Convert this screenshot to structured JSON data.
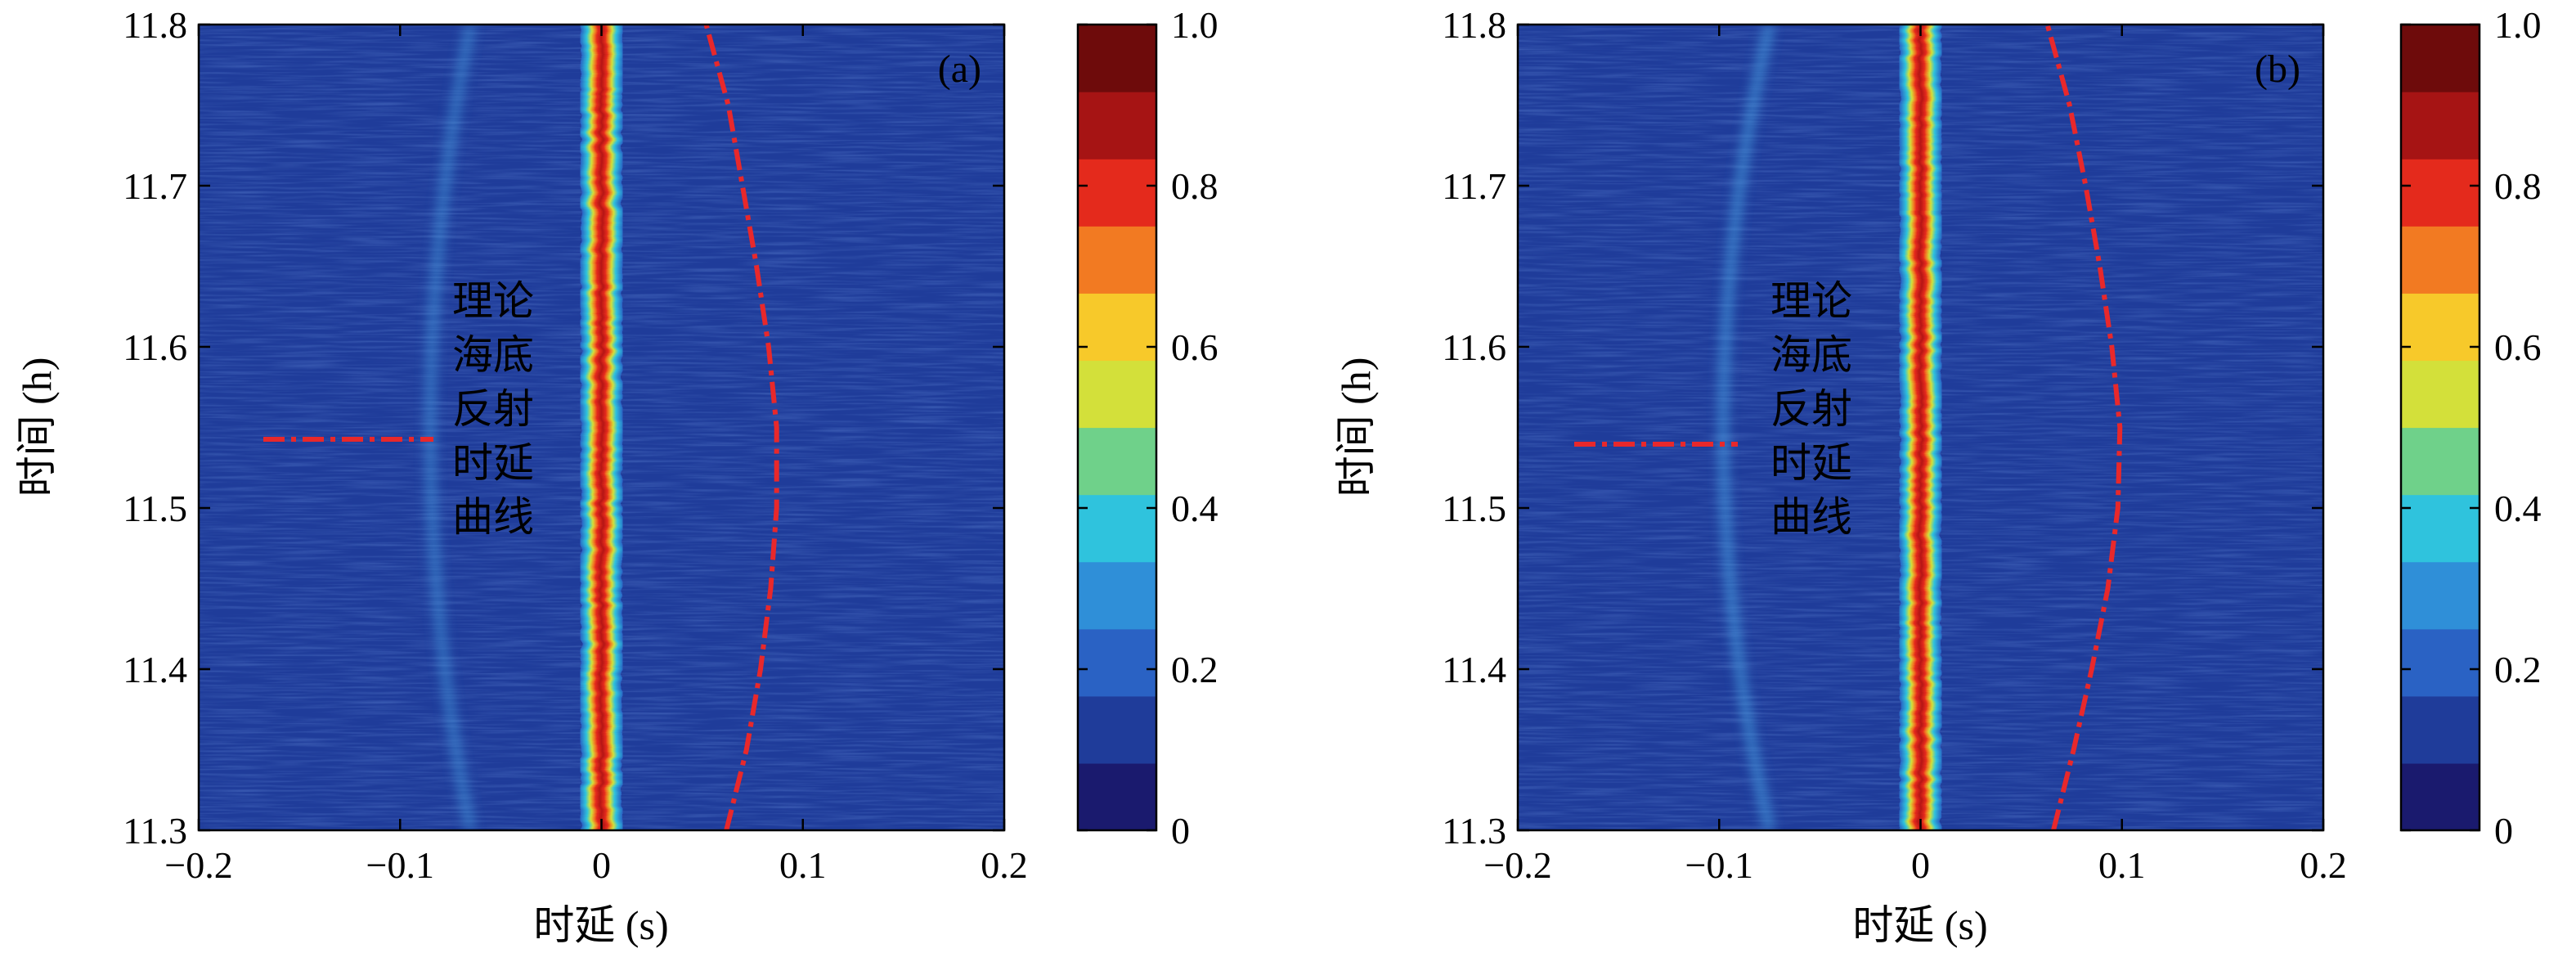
{
  "colors": {
    "background": "#1f3c9a",
    "annotation_line": "#e8282b",
    "annotation_text": "#ffffff",
    "colorbar": [
      "#1a1a6e",
      "#1f3c9a",
      "#2a62c4",
      "#2f8fd8",
      "#2fc3dd",
      "#6fd18a",
      "#d3e03a",
      "#f7c92a",
      "#f27a22",
      "#e42a1c",
      "#a61414",
      "#6e0b0b"
    ]
  },
  "chart_data": [
    {
      "type": "heatmap",
      "panel_label": "(a)",
      "xlabel": "时延 (s)",
      "ylabel": "时间 (h)",
      "xlim": [
        -0.2,
        0.2
      ],
      "ylim": [
        11.3,
        11.8
      ],
      "xticks": [
        -0.2,
        -0.1,
        0,
        0.1,
        0.2
      ],
      "xtick_labels": [
        "−0.2",
        "−0.1",
        "0",
        "0.1",
        "0.2"
      ],
      "yticks": [
        11.3,
        11.4,
        11.5,
        11.6,
        11.7,
        11.8
      ],
      "ytick_labels": [
        "11.3",
        "11.4",
        "11.5",
        "11.6",
        "11.7",
        "11.8"
      ],
      "colorbar": {
        "range": [
          0,
          1
        ],
        "ticks": [
          0,
          0.2,
          0.4,
          0.6,
          0.8,
          1.0
        ],
        "tick_labels": [
          "0",
          "0.2",
          "0.4",
          "0.6",
          "0.8",
          "1.0"
        ]
      },
      "direct_path": {
        "delay": 0.0,
        "intensity": 1.0
      },
      "faint_arc": {
        "delay_at_center": -0.085,
        "delay_at_edges": -0.065,
        "intensity": 0.3
      },
      "theoretical_curve": {
        "label_lines": [
          "理论",
          "海底",
          "反射",
          "时延",
          "曲线"
        ],
        "style": "dash-dot",
        "points": [
          [
            0.062,
            11.3
          ],
          [
            0.072,
            11.35
          ],
          [
            0.079,
            11.4
          ],
          [
            0.084,
            11.45
          ],
          [
            0.087,
            11.5
          ],
          [
            0.087,
            11.55
          ],
          [
            0.083,
            11.6
          ],
          [
            0.077,
            11.65
          ],
          [
            0.07,
            11.7
          ],
          [
            0.063,
            11.75
          ],
          [
            0.052,
            11.8
          ]
        ]
      }
    },
    {
      "type": "heatmap",
      "panel_label": "(b)",
      "xlabel": "时延 (s)",
      "ylabel": "时间 (h)",
      "xlim": [
        -0.2,
        0.2
      ],
      "ylim": [
        11.3,
        11.8
      ],
      "xticks": [
        -0.2,
        -0.1,
        0,
        0.1,
        0.2
      ],
      "xtick_labels": [
        "−0.2",
        "−0.1",
        "0",
        "0.1",
        "0.2"
      ],
      "yticks": [
        11.3,
        11.4,
        11.5,
        11.6,
        11.7,
        11.8
      ],
      "ytick_labels": [
        "11.3",
        "11.4",
        "11.5",
        "11.6",
        "11.7",
        "11.8"
      ],
      "colorbar": {
        "range": [
          0,
          1
        ],
        "ticks": [
          0,
          0.2,
          0.4,
          0.6,
          0.8,
          1.0
        ],
        "tick_labels": [
          "0",
          "0.2",
          "0.4",
          "0.6",
          "0.8",
          "1.0"
        ]
      },
      "direct_path": {
        "delay": 0.0,
        "intensity": 1.0
      },
      "faint_arc": {
        "delay_at_center": -0.098,
        "delay_at_edges": -0.075,
        "intensity": 0.4
      },
      "theoretical_curve": {
        "label_lines": [
          "理论",
          "海底",
          "反射",
          "时延",
          "曲线"
        ],
        "style": "dash-dot",
        "points": [
          [
            0.066,
            11.3
          ],
          [
            0.076,
            11.35
          ],
          [
            0.085,
            11.4
          ],
          [
            0.093,
            11.45
          ],
          [
            0.098,
            11.5
          ],
          [
            0.099,
            11.55
          ],
          [
            0.095,
            11.6
          ],
          [
            0.089,
            11.65
          ],
          [
            0.082,
            11.7
          ],
          [
            0.074,
            11.75
          ],
          [
            0.063,
            11.8
          ]
        ]
      }
    }
  ]
}
